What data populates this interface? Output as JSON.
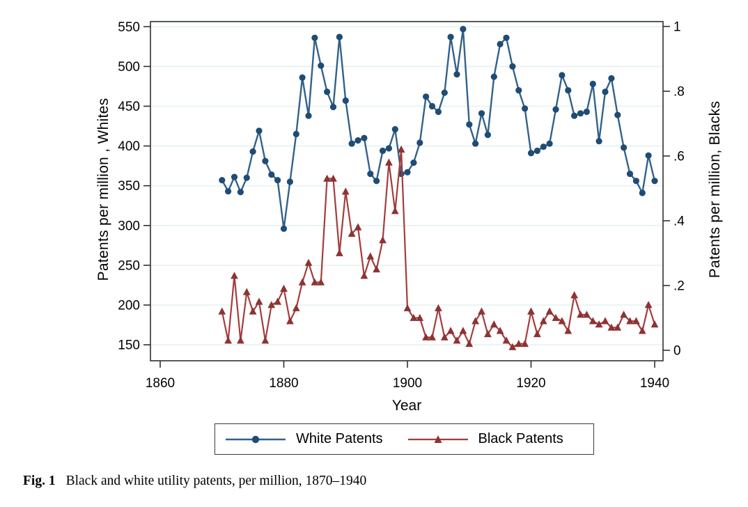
{
  "figure": {
    "caption_label": "Fig. 1",
    "caption_text": "Black and white utility patents, per million, 1870–1940"
  },
  "colors": {
    "white_series_line": "#33618a",
    "white_series_marker": "#1e4c74",
    "black_series_line": "#a33d3d",
    "black_series_marker": "#8e3333",
    "gridline": "#e4f2f1",
    "plot_border": "#303030",
    "tick": "#303030",
    "text": "#000000",
    "background": "#ffffff"
  },
  "chart_data": {
    "type": "line",
    "title": "",
    "xlabel": "Year",
    "ylabel_left": "Patents per million , Whites",
    "ylabel_right": "Patents per million, Blacks",
    "grid": true,
    "legend_position": "bottom-center",
    "xlim": [
      1858.4,
      1941.4
    ],
    "ylim_left": [
      130,
      558
    ],
    "ylim_right": [
      -0.032,
      1.032
    ],
    "x_ticks": [
      1860,
      1880,
      1900,
      1920,
      1940
    ],
    "y_ticks_left": [
      150,
      200,
      250,
      300,
      350,
      400,
      450,
      500,
      550
    ],
    "y_ticks_right_values": [
      0,
      0.2,
      0.4,
      0.6,
      0.8,
      1
    ],
    "y_ticks_right_labels": [
      "0",
      ".2",
      ".4",
      ".6",
      ".8",
      "1"
    ],
    "x": [
      1870,
      1871,
      1872,
      1873,
      1874,
      1875,
      1876,
      1877,
      1878,
      1879,
      1880,
      1881,
      1882,
      1883,
      1884,
      1885,
      1886,
      1887,
      1888,
      1889,
      1890,
      1891,
      1892,
      1893,
      1894,
      1895,
      1896,
      1897,
      1898,
      1899,
      1900,
      1901,
      1902,
      1903,
      1904,
      1905,
      1906,
      1907,
      1908,
      1909,
      1910,
      1911,
      1912,
      1913,
      1914,
      1915,
      1916,
      1917,
      1918,
      1919,
      1920,
      1921,
      1922,
      1923,
      1924,
      1925,
      1926,
      1927,
      1928,
      1929,
      1930,
      1931,
      1932,
      1933,
      1934,
      1935,
      1936,
      1937,
      1938,
      1939,
      1940
    ],
    "series": [
      {
        "name": "White Patents",
        "axis": "left",
        "marker": "circle",
        "values": [
          357,
          343,
          361,
          342,
          360,
          393,
          419,
          381,
          364,
          357,
          296,
          355,
          415,
          486,
          438,
          536,
          501,
          468,
          449,
          537,
          457,
          403,
          407,
          410,
          365,
          356,
          394,
          397,
          421,
          365,
          367,
          379,
          404,
          462,
          450,
          443,
          467,
          537,
          490,
          547,
          427,
          403,
          441,
          414,
          487,
          528,
          536,
          500,
          470,
          447,
          391,
          394,
          399,
          403,
          446,
          489,
          470,
          438,
          441,
          443,
          478,
          406,
          468,
          485,
          439,
          398,
          365,
          356,
          341,
          388,
          356
        ]
      },
      {
        "name": "Black Patents",
        "axis": "right",
        "marker": "triangle",
        "values": [
          0.12,
          0.03,
          0.23,
          0.03,
          0.18,
          0.12,
          0.15,
          0.03,
          0.14,
          0.15,
          0.19,
          0.09,
          0.13,
          0.21,
          0.27,
          0.21,
          0.21,
          0.53,
          0.53,
          0.3,
          0.49,
          0.36,
          0.38,
          0.23,
          0.29,
          0.25,
          0.34,
          0.58,
          0.43,
          0.62,
          0.13,
          0.1,
          0.1,
          0.04,
          0.04,
          0.13,
          0.04,
          0.06,
          0.03,
          0.06,
          0.02,
          0.09,
          0.12,
          0.05,
          0.08,
          0.06,
          0.03,
          0.01,
          0.02,
          0.02,
          0.12,
          0.05,
          0.09,
          0.12,
          0.1,
          0.09,
          0.06,
          0.17,
          0.11,
          0.11,
          0.09,
          0.08,
          0.09,
          0.07,
          0.07,
          0.11,
          0.09,
          0.09,
          0.06,
          0.14,
          0.08
        ]
      }
    ]
  }
}
